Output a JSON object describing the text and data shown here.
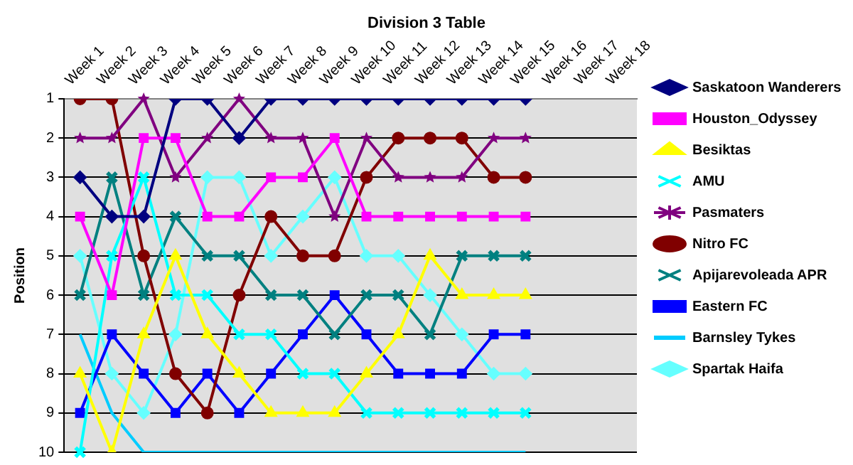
{
  "chart_data": {
    "type": "line",
    "title": "Division 3 Table",
    "ylabel": "Position",
    "categories": [
      "Week 1",
      "Week 2",
      "Week 3",
      "Week 4",
      "Week 5",
      "Week 6",
      "Week 7",
      "Week 8",
      "Week 9",
      "Week 10",
      "Week 11",
      "Week 12",
      "Week 13",
      "Week 14",
      "Week 15",
      "Week 16",
      "Week 17",
      "Week 18"
    ],
    "ylim": [
      10,
      1
    ],
    "yticks": [
      1,
      2,
      3,
      4,
      5,
      6,
      7,
      8,
      9,
      10
    ],
    "grid": "y",
    "legend": "right",
    "line_style": "solid",
    "series": [
      {
        "name": "Saskatoon Wanderers",
        "color": "#000080",
        "marker": "diamond",
        "values": [
          3,
          4,
          4,
          1,
          1,
          2,
          1,
          1,
          1,
          1,
          1,
          1,
          1,
          1,
          1,
          null,
          null,
          null
        ]
      },
      {
        "name": "Houston_Odyssey",
        "color": "#ff00ff",
        "marker": "square",
        "values": [
          4,
          6,
          2,
          2,
          4,
          4,
          3,
          3,
          2,
          4,
          4,
          4,
          4,
          4,
          4,
          null,
          null,
          null
        ]
      },
      {
        "name": "Besiktas",
        "color": "#ffff00",
        "marker": "triangle",
        "values": [
          8,
          10,
          7,
          5,
          7,
          8,
          9,
          9,
          9,
          8,
          7,
          5,
          6,
          6,
          6,
          null,
          null,
          null
        ]
      },
      {
        "name": "AMU",
        "color": "#00ffff",
        "marker": "cross",
        "values": [
          10,
          5,
          3,
          6,
          6,
          7,
          7,
          8,
          8,
          9,
          9,
          9,
          9,
          9,
          9,
          null,
          null,
          null
        ]
      },
      {
        "name": "Pasmaters",
        "color": "#800080",
        "marker": "star",
        "values": [
          2,
          2,
          1,
          3,
          2,
          1,
          2,
          2,
          4,
          2,
          3,
          3,
          3,
          2,
          2,
          null,
          null,
          null
        ]
      },
      {
        "name": "Nitro FC",
        "color": "#800000",
        "marker": "circle",
        "values": [
          1,
          1,
          5,
          8,
          9,
          6,
          4,
          5,
          5,
          3,
          2,
          2,
          2,
          3,
          3,
          null,
          null,
          null
        ]
      },
      {
        "name": "Apijarevoleada APR",
        "color": "#008080",
        "marker": "cross",
        "values": [
          6,
          3,
          6,
          4,
          5,
          5,
          6,
          6,
          7,
          6,
          6,
          7,
          5,
          5,
          5,
          null,
          null,
          null
        ]
      },
      {
        "name": "Eastern FC",
        "color": "#0000ff",
        "marker": "square",
        "values": [
          9,
          7,
          8,
          9,
          8,
          9,
          8,
          7,
          6,
          7,
          8,
          8,
          8,
          7,
          7,
          null,
          null,
          null
        ]
      },
      {
        "name": "Barnsley Tykes",
        "color": "#00ccff",
        "marker": "none",
        "values": [
          7,
          9,
          10,
          10,
          10,
          10,
          10,
          10,
          10,
          10,
          10,
          10,
          10,
          10,
          10,
          null,
          null,
          null
        ]
      },
      {
        "name": "Spartak Haifa",
        "color": "#66ffff",
        "marker": "diamond",
        "values": [
          5,
          8,
          9,
          7,
          3,
          3,
          5,
          4,
          3,
          5,
          5,
          6,
          7,
          8,
          8,
          null,
          null,
          null
        ]
      }
    ]
  }
}
